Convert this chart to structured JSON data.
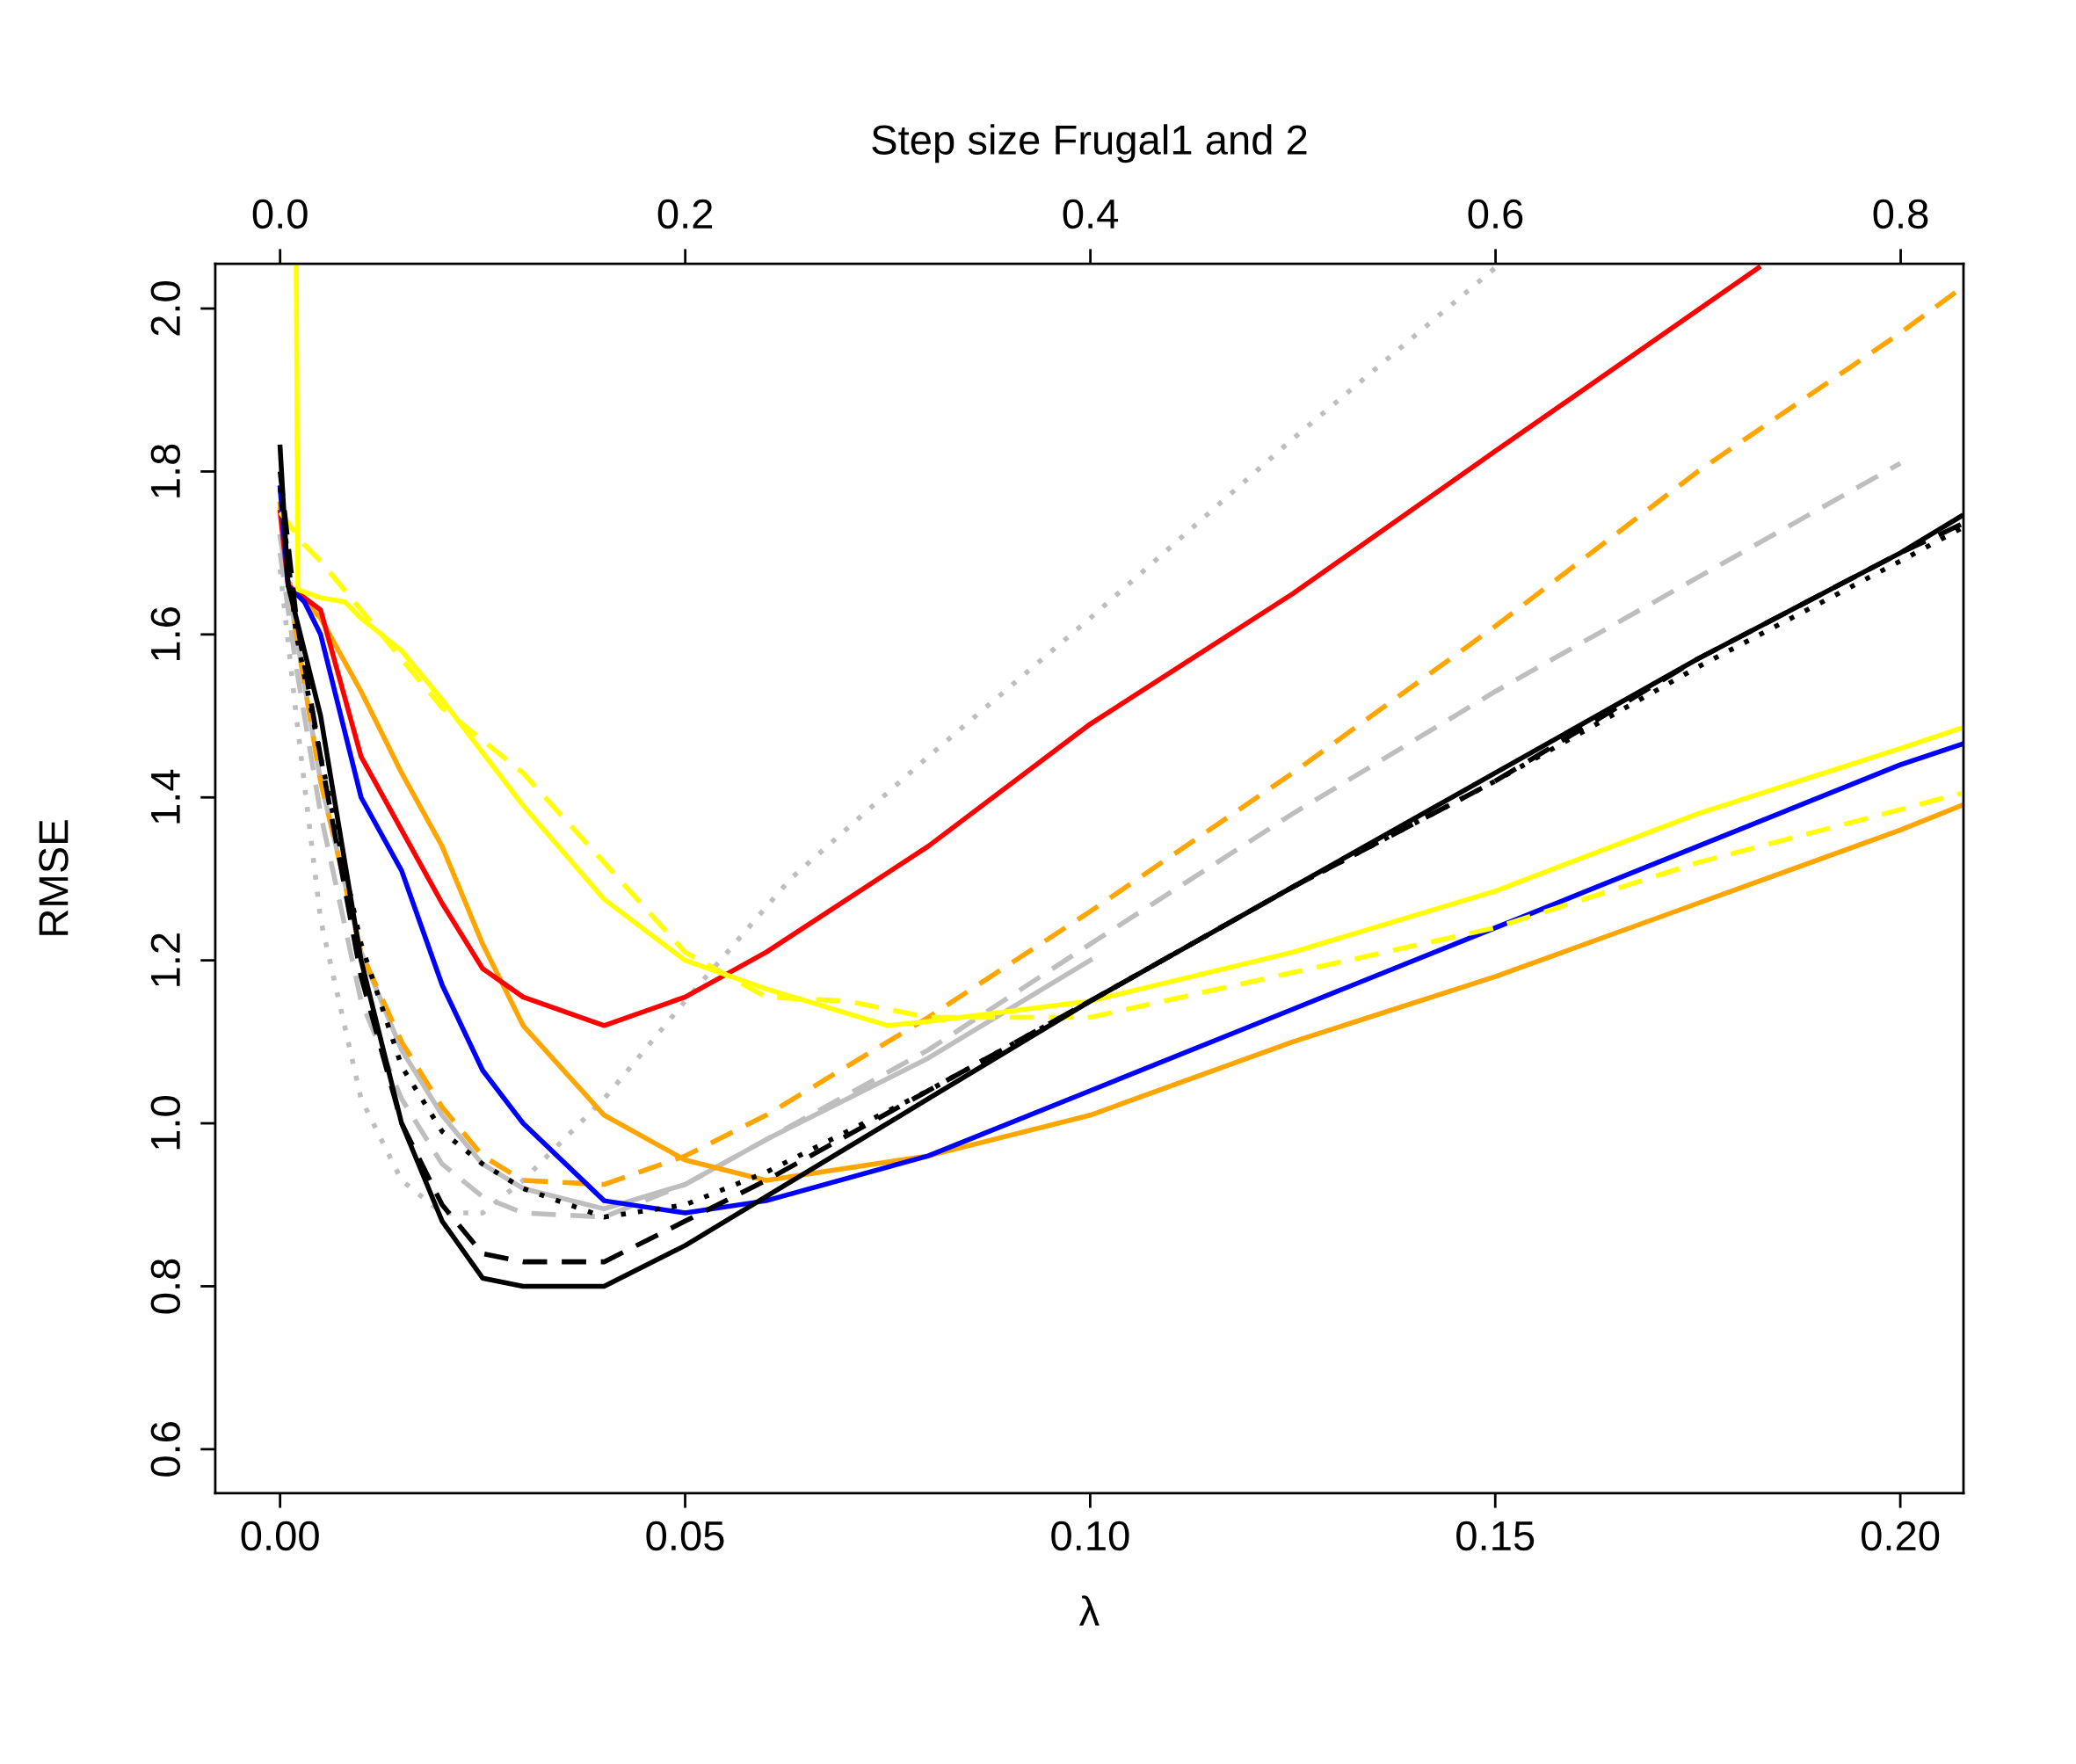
{
  "chart_data": {
    "type": "line",
    "xlabel": "λ",
    "ylabel": "RMSE",
    "x2label": "Step size Frugal1 and 2",
    "xlim": [
      -0.008,
      0.2078
    ],
    "ylim": [
      0.546,
      2.055
    ],
    "x2lim": [
      -0.032,
      0.831
    ],
    "xticks": [
      {
        "value": 0,
        "label": "0.00"
      },
      {
        "value": 0.05,
        "label": "0.05"
      },
      {
        "value": 0.1,
        "label": "0.10"
      },
      {
        "value": 0.15,
        "label": "0.15"
      },
      {
        "value": 0.2,
        "label": "0.20"
      }
    ],
    "yticks": [
      {
        "value": 0.6,
        "label": "0.6"
      },
      {
        "value": 0.8,
        "label": "0.8"
      },
      {
        "value": 1.0,
        "label": "1.0"
      },
      {
        "value": 1.2,
        "label": "1.2"
      },
      {
        "value": 1.4,
        "label": "1.4"
      },
      {
        "value": 1.6,
        "label": "1.6"
      },
      {
        "value": 1.8,
        "label": "1.8"
      },
      {
        "value": 2.0,
        "label": "2.0"
      }
    ],
    "x2ticks": [
      {
        "value": 0,
        "label": "0.0"
      },
      {
        "value": 0.2,
        "label": "0.2"
      },
      {
        "value": 0.4,
        "label": "0.4"
      },
      {
        "value": 0.6,
        "label": "0.6"
      },
      {
        "value": 0.8,
        "label": "0.8"
      }
    ],
    "grid": false,
    "marker": "none",
    "series": [
      {
        "color": "#bebebe",
        "line_style": "dotted",
        "x": [
          0,
          0.002,
          0.005,
          0.01,
          0.015,
          0.02,
          0.025,
          0.03,
          0.04,
          0.05,
          0.063,
          0.08,
          0.1,
          0.125,
          0.15
        ],
        "values": [
          1.68,
          1.5,
          1.25,
          1.03,
          0.93,
          0.89,
          0.89,
          0.93,
          1.03,
          1.15,
          1.3,
          1.45,
          1.62,
          1.84,
          2.05
        ]
      },
      {
        "color": "#bebebe",
        "line_style": "dashed",
        "x": [
          0,
          0.002,
          0.005,
          0.01,
          0.015,
          0.02,
          0.025,
          0.03,
          0.04,
          0.05,
          0.06,
          0.08,
          0.1,
          0.125,
          0.15,
          0.175,
          0.2
        ],
        "values": [
          1.7,
          1.56,
          1.38,
          1.15,
          1.03,
          0.95,
          0.91,
          0.89,
          0.885,
          0.925,
          0.98,
          1.09,
          1.22,
          1.38,
          1.53,
          1.67,
          1.81
        ]
      },
      {
        "color": "#bebebe",
        "line_style": "solid",
        "x": [
          0,
          0.002,
          0.005,
          0.01,
          0.015,
          0.02,
          0.025,
          0.03,
          0.04,
          0.05,
          0.06,
          0.08,
          0.1
        ],
        "values": [
          1.72,
          1.6,
          1.42,
          1.21,
          1.09,
          1.01,
          0.95,
          0.92,
          0.895,
          0.925,
          0.98,
          1.08,
          1.2
        ]
      },
      {
        "color": "#ffa500",
        "line_style": "dashed",
        "x": [
          0,
          0.002,
          0.005,
          0.01,
          0.015,
          0.02,
          0.025,
          0.03,
          0.04,
          0.05,
          0.06,
          0.08,
          0.1,
          0.125,
          0.15,
          0.175,
          0.2,
          0.2075
        ],
        "values": [
          1.76,
          1.6,
          1.42,
          1.21,
          1.1,
          1.02,
          0.96,
          0.93,
          0.925,
          0.96,
          1.01,
          1.13,
          1.26,
          1.43,
          1.61,
          1.8,
          1.97,
          2.025
        ]
      },
      {
        "color": "#ffa500",
        "line_style": "solid",
        "x": [
          0,
          0.001,
          0.005,
          0.01,
          0.0125,
          0.015,
          0.02,
          0.025,
          0.03,
          0.04,
          0.05,
          0.06,
          0.08,
          0.1,
          0.125,
          0.15,
          0.175,
          0.2,
          0.2075
        ],
        "values": [
          1.76,
          1.66,
          1.62,
          1.53,
          1.48,
          1.43,
          1.34,
          1.22,
          1.12,
          1.01,
          0.955,
          0.93,
          0.96,
          1.01,
          1.1,
          1.18,
          1.27,
          1.36,
          1.39
        ]
      },
      {
        "color": "#ff0000",
        "line_style": "solid",
        "x": [
          0,
          0.001,
          0.005,
          0.01,
          0.015,
          0.02,
          0.025,
          0.03,
          0.04,
          0.05,
          0.06,
          0.08,
          0.1,
          0.125,
          0.15,
          0.1825
        ],
        "values": [
          1.75,
          1.66,
          1.63,
          1.45,
          1.36,
          1.27,
          1.19,
          1.155,
          1.12,
          1.155,
          1.21,
          1.34,
          1.49,
          1.65,
          1.825,
          2.05
        ]
      },
      {
        "color": "#0000ff",
        "line_style": "solid",
        "x": [
          0,
          0.001,
          0.003,
          0.005,
          0.01,
          0.015,
          0.02,
          0.025,
          0.03,
          0.04,
          0.05,
          0.06,
          0.08,
          0.1,
          0.125,
          0.15,
          0.175,
          0.2,
          0.2075
        ],
        "values": [
          1.78,
          1.66,
          1.64,
          1.6,
          1.4,
          1.31,
          1.17,
          1.065,
          1.0,
          0.905,
          0.89,
          0.905,
          0.96,
          1.04,
          1.14,
          1.24,
          1.34,
          1.44,
          1.465
        ]
      },
      {
        "color": "#ffff00",
        "line_style": "dashed",
        "x": [
          0,
          0.003,
          0.005,
          0.01,
          0.015,
          0.02,
          0.03,
          0.04,
          0.05,
          0.06,
          0.07,
          0.08,
          0.1,
          0.125,
          0.15,
          0.175,
          0.2,
          0.2075
        ],
        "values": [
          1.75,
          1.71,
          1.69,
          1.63,
          1.57,
          1.51,
          1.43,
          1.32,
          1.21,
          1.155,
          1.15,
          1.13,
          1.13,
          1.185,
          1.24,
          1.32,
          1.385,
          1.405
        ]
      },
      {
        "color": "#ffff00",
        "line_style": "solid",
        "x": [
          0.002,
          0.0022,
          0.005,
          0.008,
          0.01,
          0.015,
          0.02,
          0.03,
          0.04,
          0.05,
          0.06,
          0.075,
          0.08,
          0.1,
          0.125,
          0.15,
          0.175,
          0.2,
          0.2075
        ],
        "values": [
          2.05,
          1.655,
          1.645,
          1.64,
          1.62,
          1.58,
          1.52,
          1.39,
          1.275,
          1.2,
          1.165,
          1.12,
          1.125,
          1.15,
          1.21,
          1.285,
          1.38,
          1.46,
          1.485
        ]
      },
      {
        "color": "#000000",
        "line_style": "dotted",
        "x": [
          0,
          0.002,
          0.005,
          0.01,
          0.015,
          0.02,
          0.025,
          0.03,
          0.04,
          0.05,
          0.06,
          0.08,
          0.1,
          0.125,
          0.15,
          0.175,
          0.2,
          0.2075
        ],
        "values": [
          1.78,
          1.6,
          1.45,
          1.22,
          1.07,
          0.99,
          0.95,
          0.92,
          0.885,
          0.9,
          0.94,
          1.04,
          1.15,
          1.29,
          1.42,
          1.56,
          1.69,
          1.73
        ]
      },
      {
        "color": "#000000",
        "line_style": "dashed",
        "x": [
          0,
          0.002,
          0.005,
          0.01,
          0.015,
          0.02,
          0.025,
          0.03,
          0.04,
          0.05,
          0.06,
          0.08,
          0.1,
          0.125,
          0.15,
          0.175,
          0.2,
          0.2075
        ],
        "values": [
          1.8,
          1.62,
          1.45,
          1.18,
          1.0,
          0.9,
          0.84,
          0.83,
          0.83,
          0.88,
          0.93,
          1.04,
          1.15,
          1.29,
          1.42,
          1.57,
          1.7,
          1.735
        ]
      },
      {
        "color": "#000000",
        "line_style": "solid",
        "x": [
          0,
          0.001,
          0.005,
          0.01,
          0.015,
          0.02,
          0.025,
          0.03,
          0.04,
          0.05,
          0.06,
          0.08,
          0.1,
          0.125,
          0.15,
          0.175,
          0.2,
          0.2075
        ],
        "values": [
          1.83,
          1.66,
          1.5,
          1.2,
          1.0,
          0.88,
          0.81,
          0.8,
          0.8,
          0.85,
          0.91,
          1.03,
          1.15,
          1.29,
          1.43,
          1.57,
          1.7,
          1.745
        ]
      }
    ]
  }
}
